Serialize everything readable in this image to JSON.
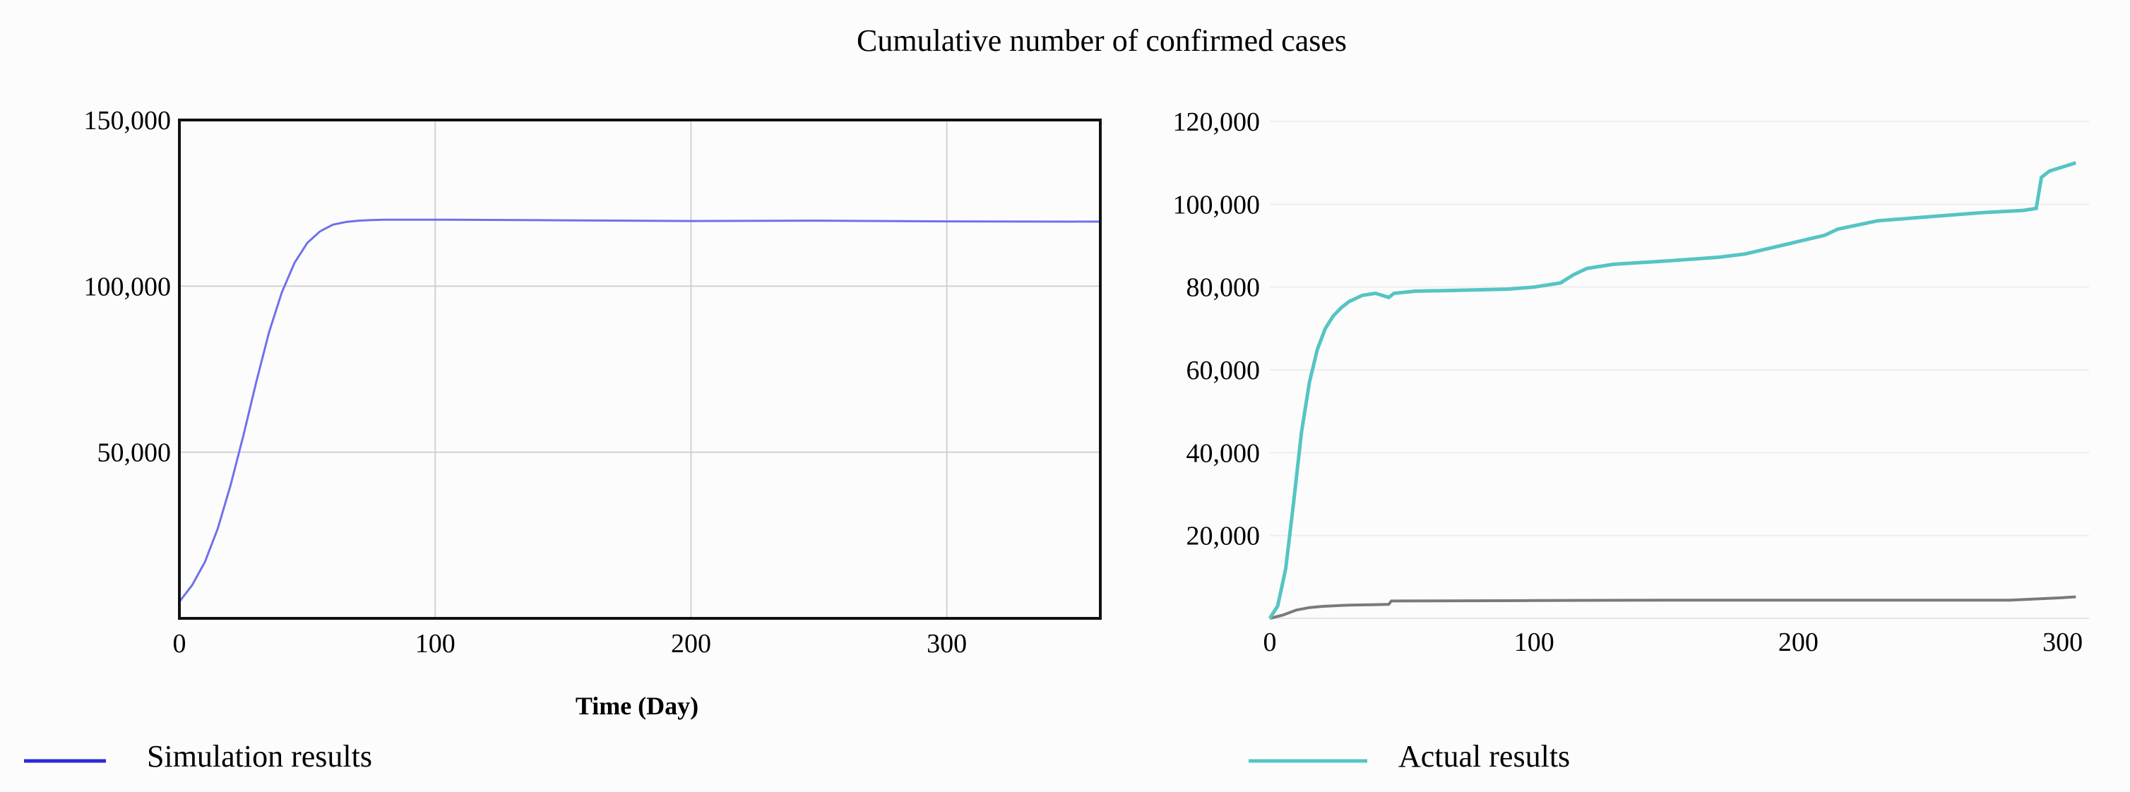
{
  "title": "Cumulative number of confirmed cases",
  "colors": {
    "simulation": "#7070ee",
    "simulation_legend": "#2a2ad6",
    "actual": "#55c4c4",
    "actual_legend": "#55c4c4",
    "baseline": "#7a7a7a",
    "grid": "#d2d2d2",
    "frame": "#111111"
  },
  "legend": {
    "simulation_label": "Simulation results",
    "actual_label": "Actual results"
  },
  "chart_data": [
    {
      "type": "line",
      "name": "simulation",
      "xlabel": "Time (Day)",
      "ylabel": "",
      "xlim": [
        0,
        360
      ],
      "ylim": [
        0,
        150000
      ],
      "x_ticks": [
        0,
        100,
        200,
        300
      ],
      "y_ticks": [
        50000,
        100000,
        150000
      ],
      "x_tick_labels": [
        "0",
        "100",
        "200",
        "300"
      ],
      "y_tick_labels": [
        "50,000",
        "100,000",
        "150,000"
      ],
      "grid": true,
      "series": [
        {
          "name": "Simulation results",
          "x": [
            0,
            5,
            10,
            15,
            20,
            25,
            30,
            35,
            40,
            45,
            50,
            55,
            60,
            65,
            70,
            75,
            80,
            90,
            100,
            150,
            200,
            250,
            300,
            360
          ],
          "values": [
            5000,
            10000,
            17000,
            27000,
            40000,
            55000,
            71000,
            86000,
            98000,
            107000,
            113000,
            116500,
            118500,
            119300,
            119700,
            119900,
            120000,
            120000,
            120000,
            119800,
            119600,
            119700,
            119500,
            119400
          ]
        }
      ]
    },
    {
      "type": "line",
      "name": "actual",
      "xlabel": "",
      "ylabel": "",
      "xlim": [
        0,
        310
      ],
      "ylim": [
        0,
        120000
      ],
      "x_ticks": [
        0,
        100,
        200,
        300
      ],
      "y_ticks": [
        20000,
        40000,
        60000,
        80000,
        100000,
        120000
      ],
      "x_tick_labels": [
        "0",
        "100",
        "200",
        "300"
      ],
      "y_tick_labels": [
        "20,000",
        "40,000",
        "60,000",
        "80,000",
        "100,000",
        "120,000"
      ],
      "grid": true,
      "series": [
        {
          "name": "Actual results",
          "x": [
            0,
            3,
            6,
            9,
            12,
            15,
            18,
            21,
            24,
            27,
            30,
            35,
            40,
            45,
            47,
            55,
            70,
            90,
            100,
            110,
            115,
            120,
            130,
            150,
            170,
            180,
            190,
            200,
            210,
            215,
            230,
            250,
            270,
            285,
            290,
            292,
            295,
            300,
            305
          ],
          "values": [
            0,
            3000,
            12000,
            28000,
            45000,
            57000,
            65000,
            70000,
            73000,
            75000,
            76500,
            78000,
            78500,
            77500,
            78500,
            79000,
            79200,
            79500,
            80000,
            81000,
            83000,
            84500,
            85500,
            86300,
            87200,
            88000,
            89500,
            91000,
            92500,
            94000,
            96000,
            97000,
            98000,
            98500,
            99000,
            106500,
            108000,
            109000,
            110000
          ]
        },
        {
          "name": "baseline",
          "x": [
            0,
            5,
            10,
            15,
            20,
            30,
            40,
            45,
            46,
            100,
            150,
            200,
            250,
            280,
            300,
            305
          ],
          "values": [
            0,
            800,
            2000,
            2600,
            2900,
            3200,
            3300,
            3400,
            4200,
            4300,
            4400,
            4400,
            4400,
            4400,
            5000,
            5200
          ]
        }
      ]
    }
  ]
}
